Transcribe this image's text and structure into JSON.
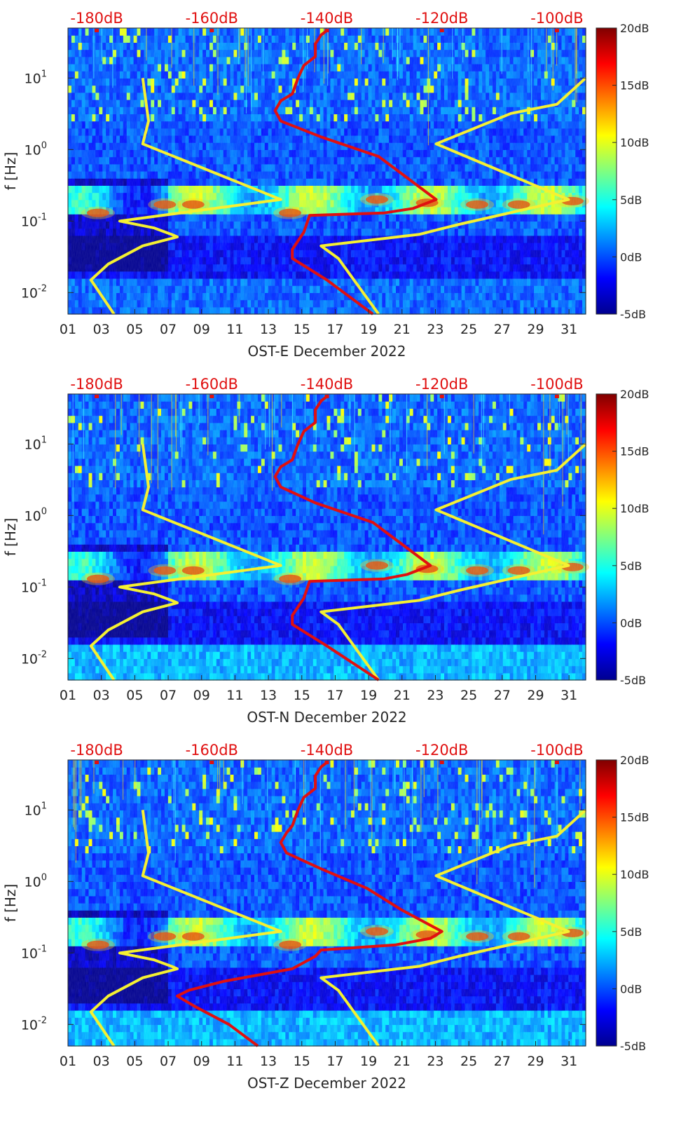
{
  "figure": {
    "type": "spectrogram_with_noise_model_overlays",
    "x_tick_labels": [
      "01",
      "03",
      "05",
      "07",
      "09",
      "11",
      "13",
      "15",
      "17",
      "19",
      "21",
      "23",
      "25",
      "27",
      "29",
      "31"
    ],
    "y_tick_labels": [
      "10^1",
      "10^0",
      "10^-1",
      "10^-2"
    ],
    "y_axis_label": "f [Hz]",
    "top_axis_labels": [
      "-180dB",
      "-160dB",
      "-140dB",
      "-120dB",
      "-100dB"
    ],
    "colorbar_labels": [
      "20dB",
      "15dB",
      "10dB",
      "5dB",
      "0dB",
      "-5dB"
    ],
    "colors": {
      "psd_line": "#e01010",
      "model_line": "#f5f032",
      "top_axis_text": "#e01010"
    }
  },
  "chart_data": [
    {
      "type": "heatmap",
      "title": "OST-E December 2022",
      "xlabel": "OST-E December 2022",
      "ylabel": "f [Hz]",
      "x_days": [
        1,
        32
      ],
      "ylim_hz": [
        0.005,
        50
      ],
      "y_scale": "log",
      "colorbar_range_db": [
        -5,
        20
      ],
      "top_axis_range_db": [
        -185,
        -95
      ],
      "noise_model_low": [
        [
          -177,
          0.005
        ],
        [
          -181,
          0.015
        ],
        [
          -178,
          0.025
        ],
        [
          -172,
          0.045
        ],
        [
          -166,
          0.06
        ],
        [
          -167,
          0.065
        ],
        [
          -170,
          0.08
        ],
        [
          -176,
          0.1
        ],
        [
          -148,
          0.2
        ],
        [
          -172,
          1.2
        ],
        [
          -171,
          2.5
        ],
        [
          -172,
          10
        ]
      ],
      "noise_model_high": [
        [
          -131,
          0.005
        ],
        [
          -138,
          0.03
        ],
        [
          -141,
          0.045
        ],
        [
          -124,
          0.065
        ],
        [
          -117,
          0.09
        ],
        [
          -98,
          0.2
        ],
        [
          -121,
          1.2
        ],
        [
          -108,
          3.2
        ],
        [
          -100,
          4.3
        ],
        [
          -95,
          10
        ]
      ],
      "psd_curve": [
        [
          -132,
          0.005
        ],
        [
          -140,
          0.015
        ],
        [
          -146,
          0.03
        ],
        [
          -146,
          0.04
        ],
        [
          -144,
          0.07
        ],
        [
          -143,
          0.12
        ],
        [
          -130,
          0.13
        ],
        [
          -125,
          0.15
        ],
        [
          -121,
          0.2
        ],
        [
          -126,
          0.4
        ],
        [
          -131,
          0.8
        ],
        [
          -141,
          1.5
        ],
        [
          -148,
          2.5
        ],
        [
          -149,
          3.5
        ],
        [
          -148,
          4.8
        ],
        [
          -146,
          6
        ],
        [
          -145,
          10
        ],
        [
          -144,
          15
        ],
        [
          -142,
          20
        ],
        [
          -142,
          30
        ],
        [
          -141,
          40
        ],
        [
          -140,
          46
        ]
      ]
    },
    {
      "type": "heatmap",
      "title": "OST-N December 2022",
      "xlabel": "OST-N December 2022",
      "ylabel": "f [Hz]",
      "x_days": [
        1,
        32
      ],
      "ylim_hz": [
        0.005,
        50
      ],
      "y_scale": "log",
      "colorbar_range_db": [
        -5,
        20
      ],
      "top_axis_range_db": [
        -185,
        -95
      ],
      "noise_model_low": [
        [
          -177,
          0.005
        ],
        [
          -181,
          0.015
        ],
        [
          -178,
          0.025
        ],
        [
          -172,
          0.045
        ],
        [
          -166,
          0.06
        ],
        [
          -167,
          0.065
        ],
        [
          -170,
          0.08
        ],
        [
          -176,
          0.1
        ],
        [
          -148,
          0.2
        ],
        [
          -172,
          1.2
        ],
        [
          -171,
          2.5
        ],
        [
          -172,
          10
        ]
      ],
      "noise_model_high": [
        [
          -131,
          0.005
        ],
        [
          -138,
          0.03
        ],
        [
          -141,
          0.045
        ],
        [
          -124,
          0.065
        ],
        [
          -117,
          0.09
        ],
        [
          -98,
          0.2
        ],
        [
          -121,
          1.2
        ],
        [
          -108,
          3.2
        ],
        [
          -100,
          4.3
        ],
        [
          -95,
          10
        ]
      ],
      "psd_curve": [
        [
          -131,
          0.005
        ],
        [
          -140,
          0.015
        ],
        [
          -146,
          0.03
        ],
        [
          -146,
          0.04
        ],
        [
          -144,
          0.07
        ],
        [
          -143,
          0.12
        ],
        [
          -130,
          0.13
        ],
        [
          -126,
          0.15
        ],
        [
          -122,
          0.2
        ],
        [
          -127,
          0.4
        ],
        [
          -132,
          0.8
        ],
        [
          -142,
          1.5
        ],
        [
          -148,
          2.5
        ],
        [
          -149,
          3.5
        ],
        [
          -148,
          4.8
        ],
        [
          -146,
          6
        ],
        [
          -145,
          10
        ],
        [
          -144,
          15
        ],
        [
          -142,
          20
        ],
        [
          -142,
          30
        ],
        [
          -141,
          40
        ],
        [
          -140,
          46
        ]
      ]
    },
    {
      "type": "heatmap",
      "title": "OST-Z December 2022",
      "xlabel": "OST-Z December 2022",
      "ylabel": "f [Hz]",
      "x_days": [
        1,
        32
      ],
      "ylim_hz": [
        0.005,
        50
      ],
      "y_scale": "log",
      "colorbar_range_db": [
        -5,
        20
      ],
      "top_axis_range_db": [
        -185,
        -95
      ],
      "noise_model_low": [
        [
          -177,
          0.005
        ],
        [
          -181,
          0.015
        ],
        [
          -178,
          0.025
        ],
        [
          -172,
          0.045
        ],
        [
          -166,
          0.06
        ],
        [
          -167,
          0.065
        ],
        [
          -170,
          0.08
        ],
        [
          -176,
          0.1
        ],
        [
          -148,
          0.2
        ],
        [
          -172,
          1.2
        ],
        [
          -171,
          2.5
        ],
        [
          -172,
          10
        ]
      ],
      "noise_model_high": [
        [
          -131,
          0.005
        ],
        [
          -138,
          0.03
        ],
        [
          -141,
          0.045
        ],
        [
          -124,
          0.065
        ],
        [
          -117,
          0.09
        ],
        [
          -98,
          0.2
        ],
        [
          -121,
          1.2
        ],
        [
          -108,
          3.2
        ],
        [
          -100,
          4.3
        ],
        [
          -95,
          10
        ]
      ],
      "psd_curve": [
        [
          -152,
          0.005
        ],
        [
          -157,
          0.01
        ],
        [
          -163,
          0.018
        ],
        [
          -166,
          0.025
        ],
        [
          -164,
          0.03
        ],
        [
          -158,
          0.04
        ],
        [
          -146,
          0.06
        ],
        [
          -142,
          0.09
        ],
        [
          -141,
          0.11
        ],
        [
          -128,
          0.13
        ],
        [
          -122,
          0.16
        ],
        [
          -120,
          0.2
        ],
        [
          -127,
          0.4
        ],
        [
          -133,
          0.8
        ],
        [
          -141,
          1.5
        ],
        [
          -147,
          2.5
        ],
        [
          -148,
          3.5
        ],
        [
          -147,
          4.8
        ],
        [
          -146,
          6
        ],
        [
          -145,
          10
        ],
        [
          -144,
          15
        ],
        [
          -142,
          20
        ],
        [
          -142,
          30
        ],
        [
          -141,
          40
        ],
        [
          -140,
          46
        ]
      ]
    }
  ]
}
